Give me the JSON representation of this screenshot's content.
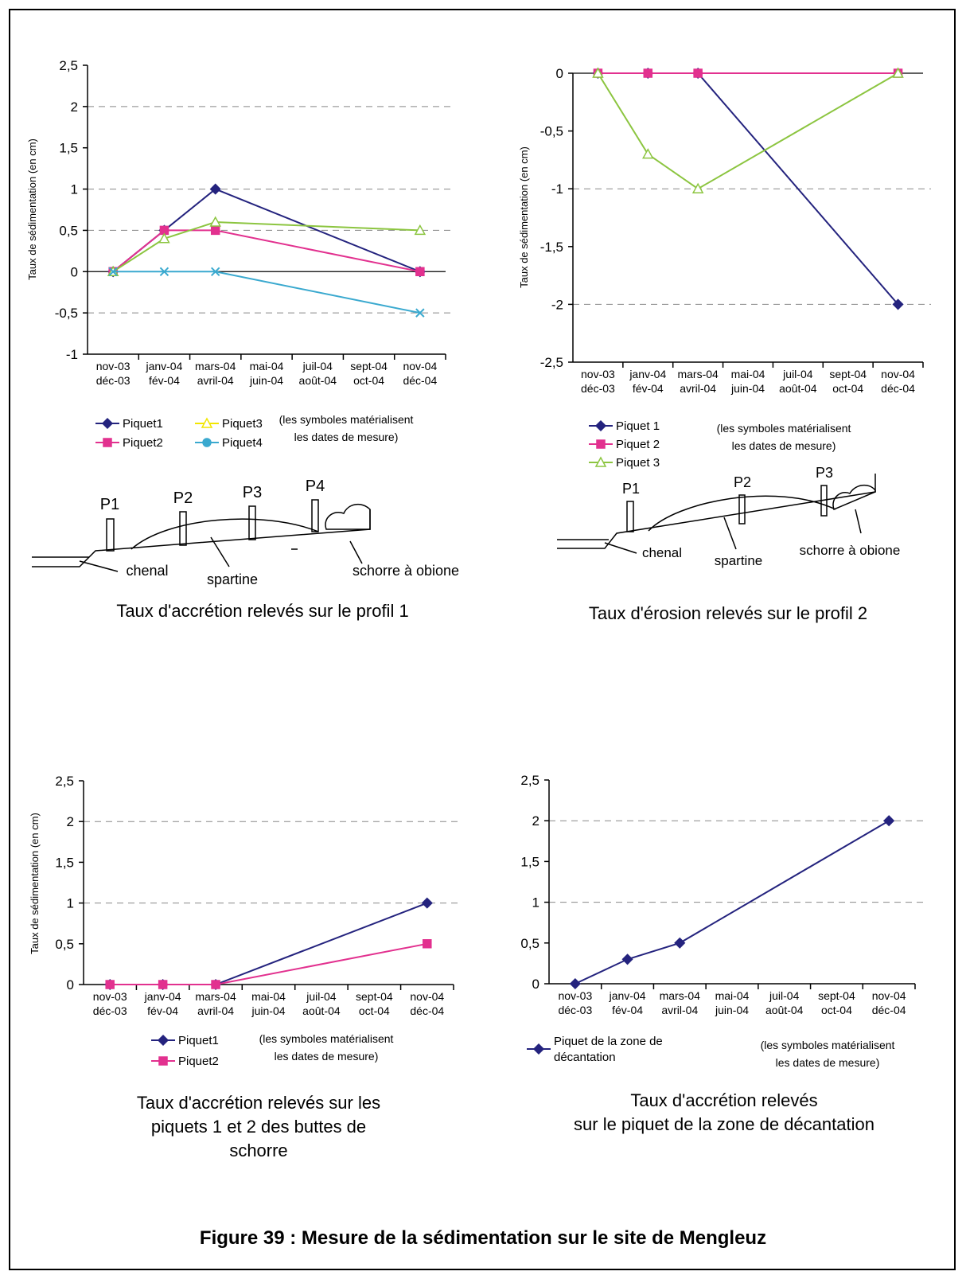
{
  "figure_title": "Figure 39 : Mesure de la sédimentation sur le site de Mengleuz",
  "chart_data": [
    {
      "type": "line",
      "y_label": "Taux de sédimentation (en cm)",
      "note": "(les symboles matérialisent\nles dates de mesure)",
      "caption": "Taux d'accrétion relevés sur le profil 1",
      "span_gaps": true,
      "zero_line": true,
      "categories": [
        "nov-03\ndéc-03",
        "janv-04\nfév-04",
        "mars-04\navril-04",
        "mai-04\njuin-04",
        "juil-04\naoût-04",
        "sept-04\noct-04",
        "nov-04\ndéc-04"
      ],
      "ylim": [
        -1,
        2.5
      ],
      "yticks": [
        -1,
        {
          "value": -0.5,
          "label": "-0,5"
        },
        0,
        {
          "value": 0.5,
          "label": "0,5"
        },
        1,
        {
          "value": 1.5,
          "label": "1,5"
        },
        2,
        {
          "value": 2.5,
          "label": "2,5"
        }
      ],
      "gridlines": [
        -0.5,
        0.5,
        1,
        2
      ],
      "series": [
        {
          "name": "Piquet1",
          "color": "#24237e",
          "marker": "diamond",
          "values": [
            0,
            0.5,
            1,
            null,
            null,
            null,
            0
          ]
        },
        {
          "name": "Piquet2",
          "color": "#e2318f",
          "marker": "square",
          "values": [
            0,
            0.5,
            0.5,
            null,
            null,
            null,
            0
          ]
        },
        {
          "name": "Piquet3",
          "color": "#8cc540",
          "legend_color": "#f2e600",
          "marker": "triangle",
          "values": [
            0,
            0.4,
            0.6,
            null,
            null,
            null,
            0.5
          ]
        },
        {
          "name": "Piquet4",
          "color": "#3aa9cf",
          "marker": "x",
          "legend_marker": "circle",
          "values": [
            0,
            0,
            0,
            null,
            null,
            null,
            -0.5
          ]
        }
      ]
    },
    {
      "type": "line",
      "y_label": "Taux de sédimentation (en cm)",
      "note": "(les symboles matérialisent\nles dates de mesure)",
      "caption": "Taux d'érosion relevés sur le profil 2",
      "span_gaps": true,
      "zero_line": true,
      "categories": [
        "nov-03\ndéc-03",
        "janv-04\nfév-04",
        "mars-04\navril-04",
        "mai-04\njuin-04",
        "juil-04\naoût-04",
        "sept-04\noct-04",
        "nov-04\ndéc-04"
      ],
      "ylim": [
        -2.5,
        0
      ],
      "yticks": [
        {
          "value": -2.5,
          "label": "-2,5"
        },
        -2,
        {
          "value": -1.5,
          "label": "-1,5"
        },
        -1,
        {
          "value": -0.5,
          "label": "-0,5"
        },
        0
      ],
      "gridlines": [
        -2,
        -1
      ],
      "series": [
        {
          "name": "Piquet 1",
          "color": "#24237e",
          "marker": "diamond",
          "values": [
            0,
            0,
            0,
            null,
            null,
            null,
            -2
          ]
        },
        {
          "name": "Piquet 2",
          "color": "#e2318f",
          "marker": "square",
          "values": [
            0,
            0,
            0,
            null,
            null,
            null,
            0
          ]
        },
        {
          "name": "Piquet 3",
          "color": "#8cc540",
          "marker": "triangle",
          "values": [
            0,
            -0.7,
            -1,
            null,
            null,
            null,
            0
          ]
        }
      ]
    },
    {
      "type": "line",
      "y_label": "Taux de sédimentation (en cm)",
      "note": "(les symboles matérialisent\nles dates de mesure)",
      "caption": "Taux d'accrétion relevés sur les\npiquets 1 et 2 des buttes de\nschorre",
      "span_gaps": true,
      "zero_line": false,
      "categories": [
        "nov-03\ndéc-03",
        "janv-04\nfév-04",
        "mars-04\navril-04",
        "mai-04\njuin-04",
        "juil-04\naoût-04",
        "sept-04\noct-04",
        "nov-04\ndéc-04"
      ],
      "ylim": [
        0,
        2.5
      ],
      "yticks": [
        0,
        {
          "value": 0.5,
          "label": "0,5"
        },
        1,
        {
          "value": 1.5,
          "label": "1,5"
        },
        2,
        {
          "value": 2.5,
          "label": "2,5"
        }
      ],
      "gridlines": [
        1,
        2
      ],
      "series": [
        {
          "name": "Piquet1",
          "color": "#24237e",
          "marker": "diamond",
          "values": [
            0,
            0,
            0,
            null,
            null,
            null,
            1
          ]
        },
        {
          "name": "Piquet2",
          "color": "#e2318f",
          "marker": "square",
          "values": [
            0,
            0,
            0,
            null,
            null,
            null,
            0.5
          ]
        }
      ]
    },
    {
      "type": "line",
      "note": "(les symboles matérialisent\nles dates de mesure)",
      "caption": "Taux d'accrétion relevés\nsur le piquet de la zone de décantation",
      "span_gaps": true,
      "zero_line": false,
      "categories": [
        "nov-03\ndéc-03",
        "janv-04\nfév-04",
        "mars-04\navril-04",
        "mai-04\njuin-04",
        "juil-04\naoût-04",
        "sept-04\noct-04",
        "nov-04\ndéc-04"
      ],
      "ylim": [
        0,
        2.5
      ],
      "yticks": [
        0,
        {
          "value": 0.5,
          "label": "0,5"
        },
        1,
        {
          "value": 1.5,
          "label": "1,5"
        },
        2,
        {
          "value": 2.5,
          "label": "2,5"
        }
      ],
      "gridlines": [
        1,
        2
      ],
      "series": [
        {
          "name": "Piquet de la zone de\ndécantation",
          "color": "#24237e",
          "marker": "diamond",
          "values": [
            0,
            0.3,
            0.5,
            null,
            null,
            null,
            2
          ]
        }
      ]
    }
  ],
  "diagrams": [
    {
      "piquets": [
        "P1",
        "P2",
        "P3",
        "P4"
      ],
      "chenal": "chenal",
      "spartine": "spartine",
      "schorre": "schorre à obione"
    },
    {
      "piquets": [
        "P1",
        "P2",
        "P3"
      ],
      "chenal": "chenal",
      "spartine": "spartine",
      "schorre": "schorre à obione"
    }
  ]
}
